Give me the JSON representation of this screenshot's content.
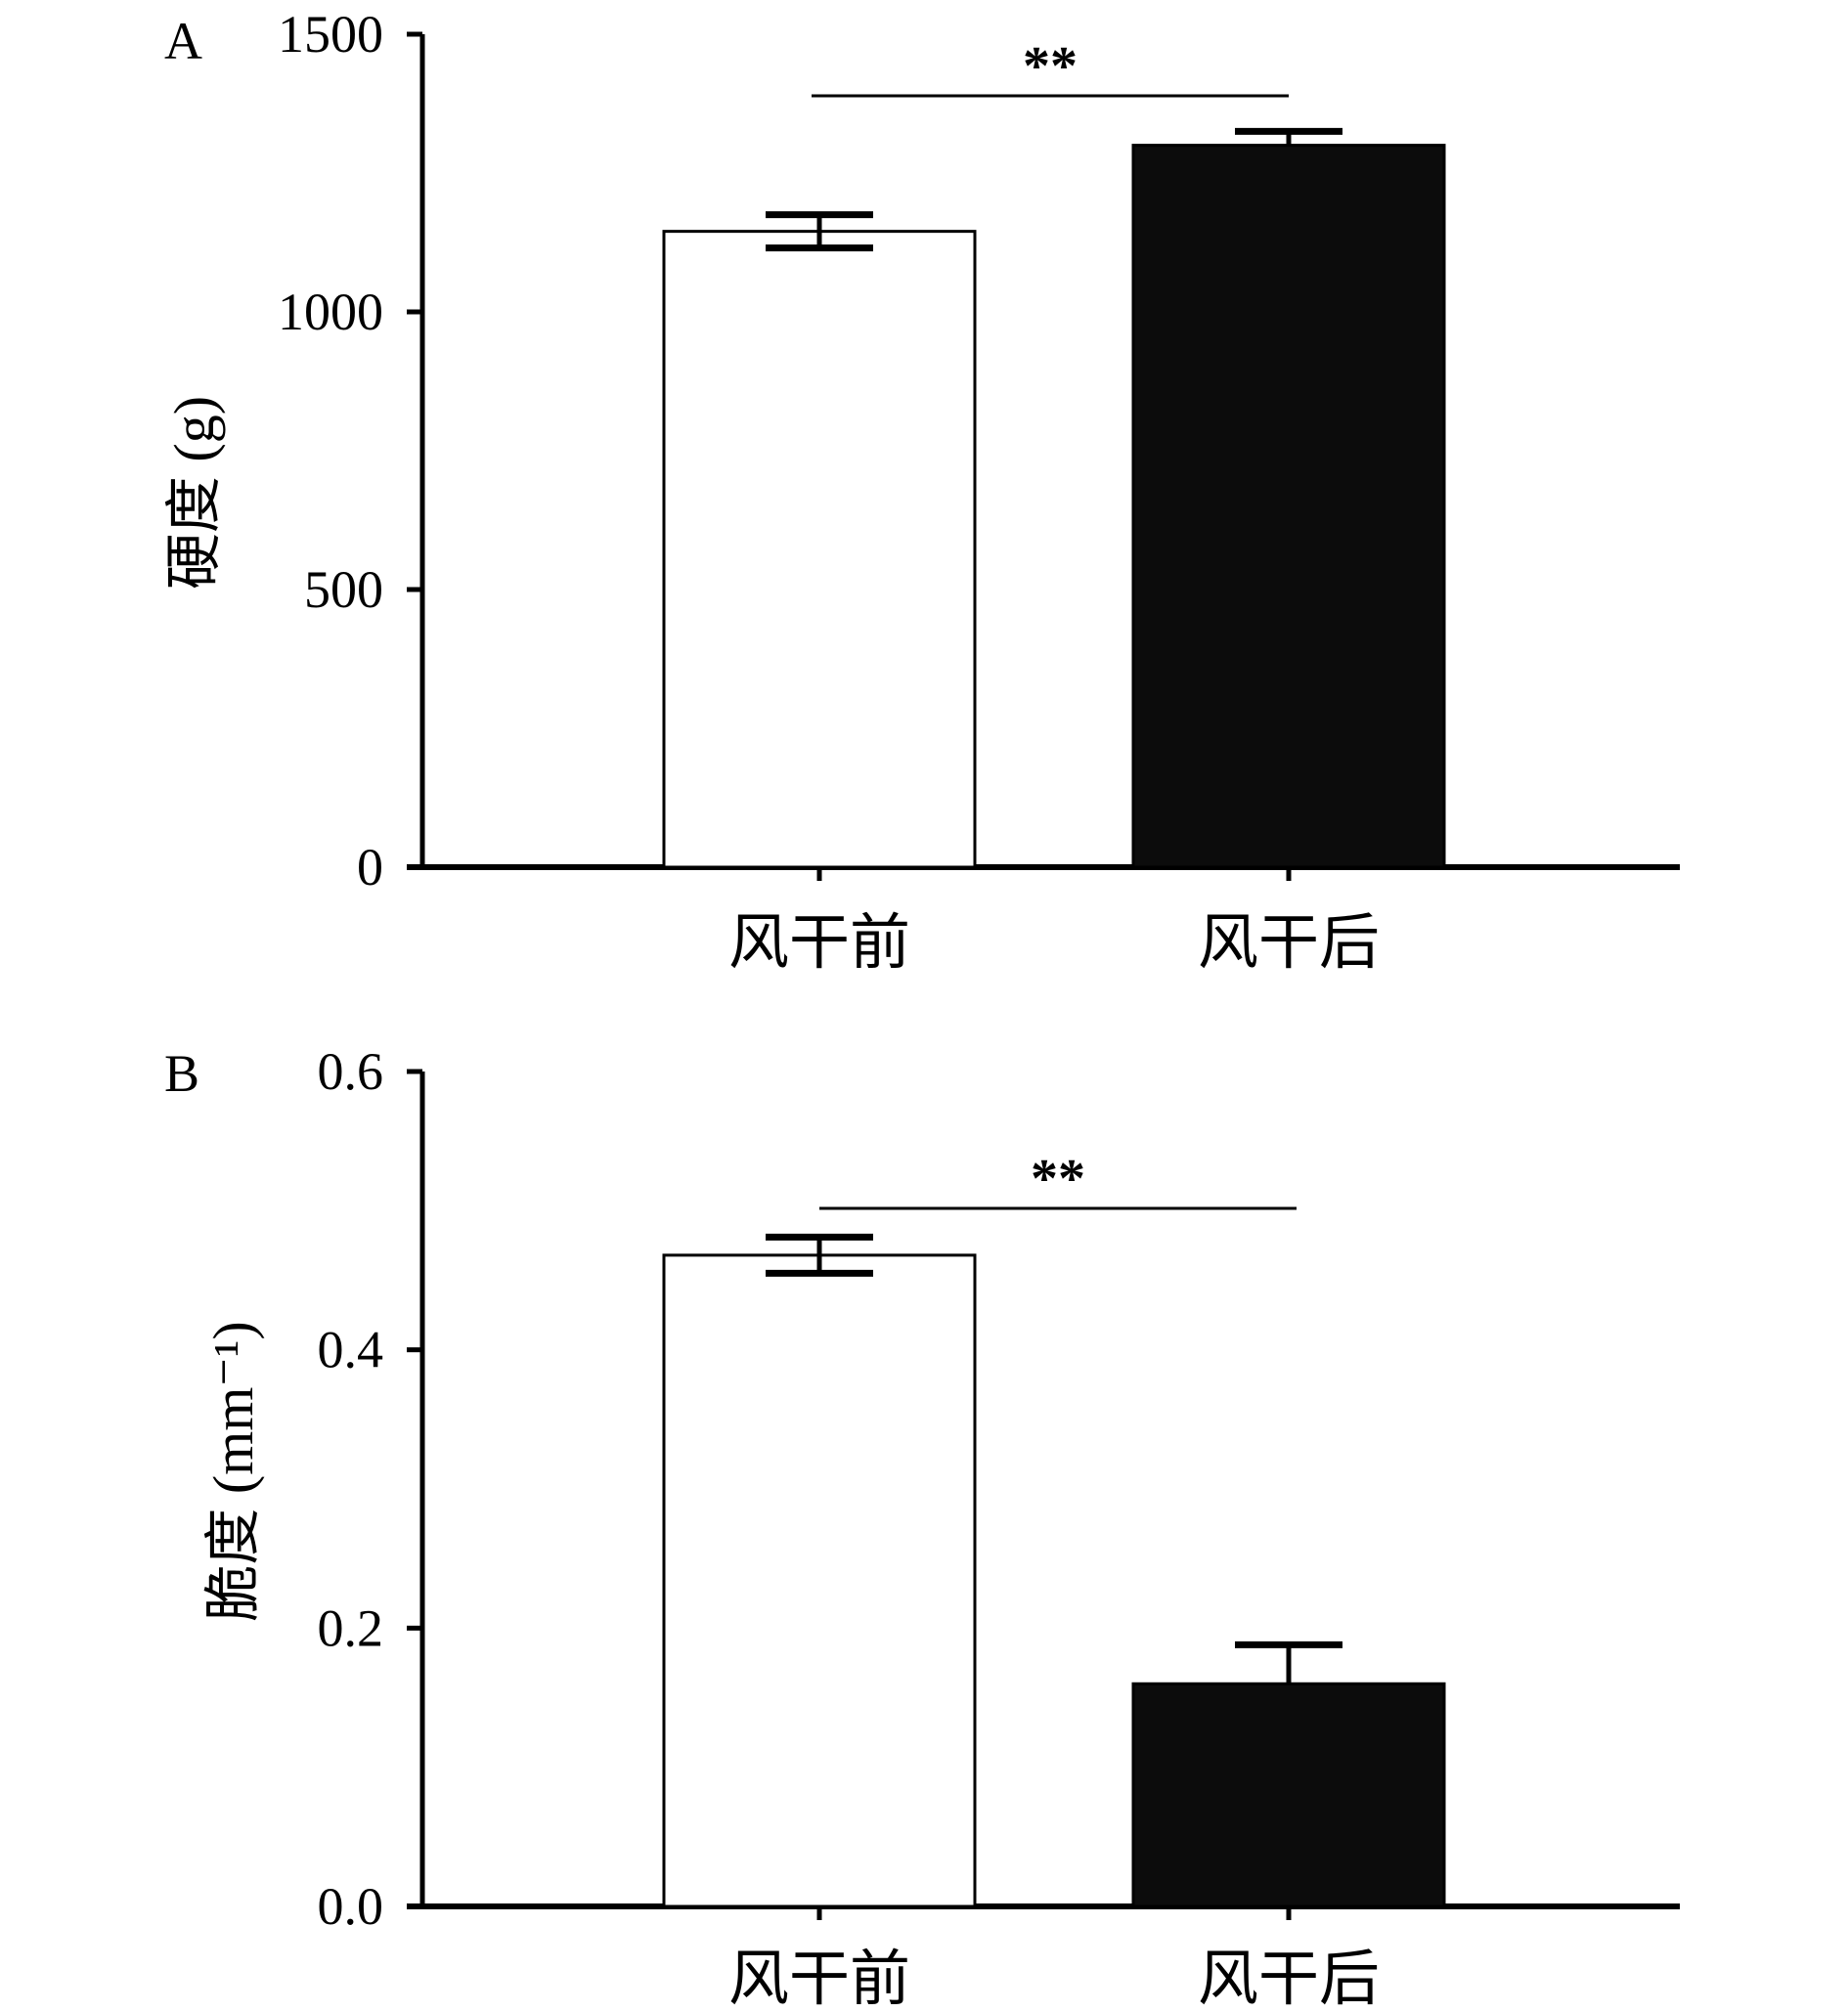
{
  "figure": {
    "panels": [
      "A",
      "B"
    ]
  },
  "chart_data": [
    {
      "type": "bar",
      "panel": "A",
      "categories": [
        "风干前",
        "风干后"
      ],
      "values": [
        1145,
        1300
      ],
      "errors": [
        30,
        25
      ],
      "bar_colors": [
        "#ffffff",
        "#0c0c0c"
      ],
      "ylabel": "硬度 (g)",
      "ylim": [
        0,
        1500
      ],
      "yticks": [
        0,
        500,
        1000,
        1500
      ],
      "ytick_labels": [
        "0",
        "500",
        "1000",
        "1500"
      ],
      "significance": "**"
    },
    {
      "type": "bar",
      "panel": "B",
      "categories": [
        "风干前",
        "风干后"
      ],
      "values": [
        0.468,
        0.16
      ],
      "errors": [
        0.013,
        0.028
      ],
      "bar_colors": [
        "#ffffff",
        "#0c0c0c"
      ],
      "ylabel": "脆度 (mm⁻¹)",
      "ylim": [
        0,
        0.6
      ],
      "yticks": [
        0,
        0.2,
        0.4,
        0.6
      ],
      "ytick_labels": [
        "0.0",
        "0.2",
        "0.4",
        "0.6"
      ],
      "significance": "**"
    }
  ]
}
